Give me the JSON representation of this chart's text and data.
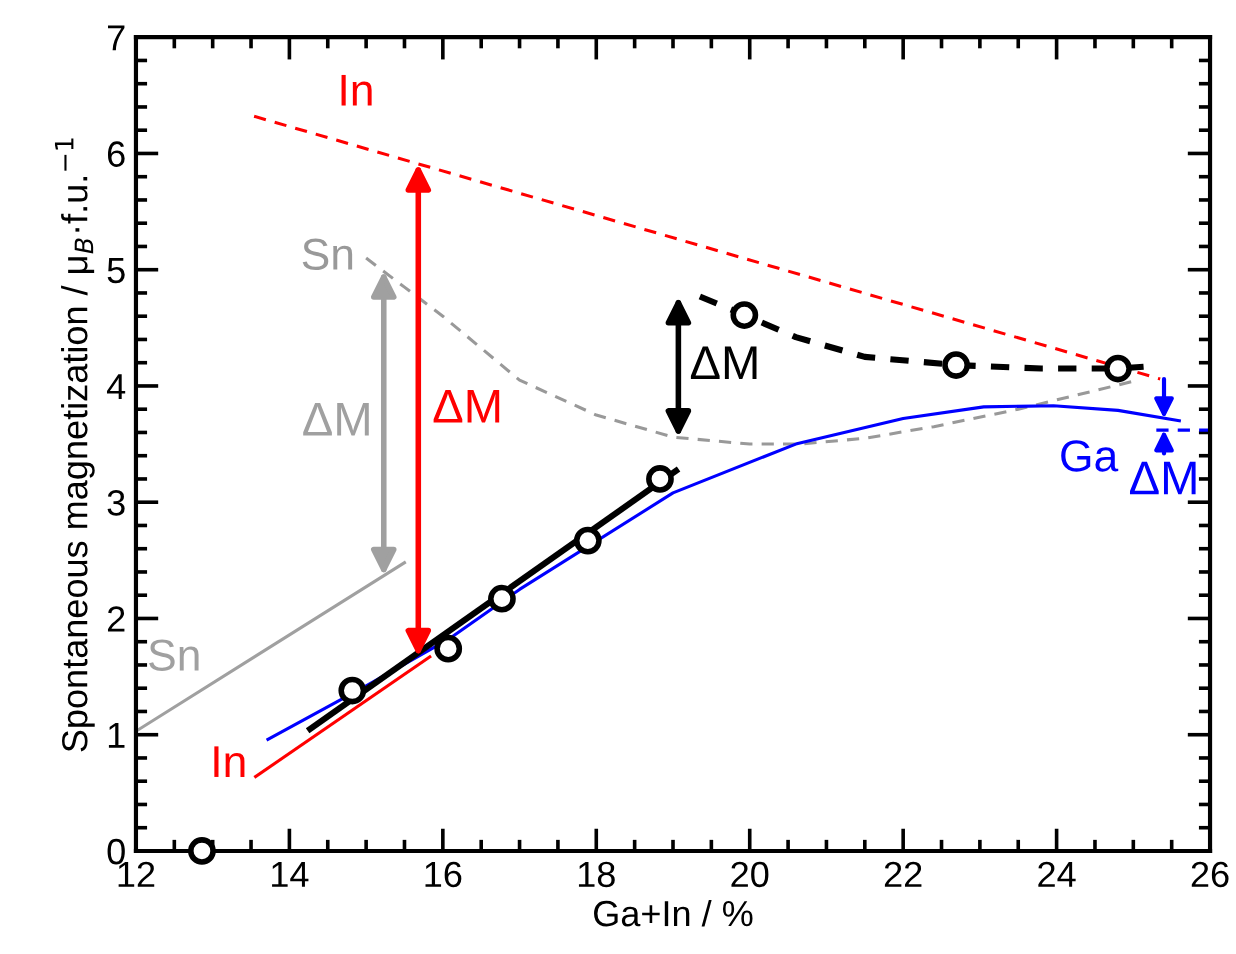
{
  "chart_data": {
    "type": "line",
    "xlabel": "Ga+In / %",
    "ylabel": "Spontaneous magnetization / μ$_{B}$·f.u.$^{−1}$",
    "xlim": [
      12,
      26
    ],
    "xticks": [
      12,
      14,
      16,
      18,
      20,
      22,
      24,
      26
    ],
    "ylim": [
      0,
      7
    ],
    "yticks": [
      0,
      1,
      2,
      3,
      4,
      5,
      6,
      7
    ],
    "grid": false,
    "legend": false,
    "series": [
      {
        "name": "In",
        "color": "#ff0000",
        "line_style": "dashed",
        "x": [
          13.54,
          25.35
        ],
        "values": [
          6.32,
          4.06
        ]
      },
      {
        "name": "Sn",
        "color": "#999999",
        "line_style": "dashed",
        "x": [
          15.0,
          15.5,
          16.0,
          17.0,
          18.0,
          19.0,
          20.0,
          20.65,
          21.5,
          22.4,
          23.5,
          25.0
        ],
        "values": [
          5.1,
          4.85,
          4.6,
          4.05,
          3.75,
          3.56,
          3.5,
          3.5,
          3.55,
          3.65,
          3.8,
          4.04
        ]
      },
      {
        "name": "Sn",
        "color": "#a0a0a0",
        "line_style": "solid",
        "x": [
          12.0,
          15.5
        ],
        "values": [
          1.03,
          2.48
        ]
      },
      {
        "name": "In",
        "color": "#ff0000",
        "line_style": "solid",
        "x": [
          13.56,
          15.83
        ],
        "values": [
          0.64,
          1.67
        ]
      },
      {
        "name": "Ga",
        "color": "#0000ff",
        "line_style": "solid",
        "x": [
          13.72,
          15.0,
          16.07,
          17.0,
          19.0,
          20.6,
          22.0,
          23.05,
          23.96,
          24.8,
          25.6
        ],
        "values": [
          0.96,
          1.42,
          1.82,
          2.25,
          3.08,
          3.5,
          3.72,
          3.82,
          3.83,
          3.79,
          3.7
        ]
      },
      {
        "color": "#0000ff",
        "line_style": "dashed",
        "x": [
          25.3,
          26.0
        ],
        "values": [
          3.62,
          3.62
        ]
      },
      {
        "color": "#000000",
        "line_style": "solid",
        "x": [
          14.27,
          19.04
        ],
        "values": [
          1.05,
          3.27
        ]
      },
      {
        "color": "#000000",
        "line_style": "dashed",
        "x": [
          19.35,
          19.93,
          20.6,
          21.5,
          22.69,
          23.8,
          24.8,
          25.22
        ],
        "values": [
          4.77,
          4.61,
          4.42,
          4.25,
          4.18,
          4.15,
          4.15,
          4.17
        ]
      },
      {
        "type": "scatter",
        "color": "#000000",
        "marker": "circle",
        "x": [
          12.86,
          14.82,
          16.07,
          16.77,
          17.89,
          18.83,
          19.93,
          22.69,
          24.8
        ],
        "values": [
          0.0,
          1.38,
          1.74,
          2.17,
          2.67,
          3.2,
          4.61,
          4.18,
          4.15
        ]
      }
    ],
    "annotations": [
      {
        "text": "ΔM",
        "x": 15.23,
        "y": 4.99
      },
      "ΔM",
      {
        "text": "ΔM",
        "x": 19.07,
        "y": 3.56
      },
      {
        "text": "ΔM",
        "x": 25.4,
        "y": 3.72
      }
    ]
  }
}
